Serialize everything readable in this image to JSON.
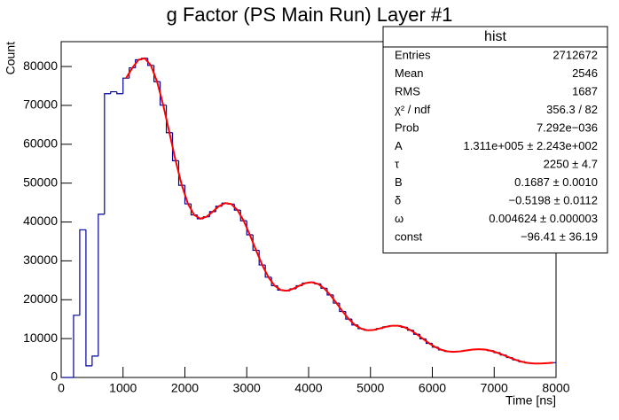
{
  "chart_data": {
    "type": "histogram",
    "title": "g Factor (PS Main Run) Layer #1",
    "x_label": "Time [ns]",
    "y_label": "Count",
    "bins": [
      0,
      100,
      200,
      300,
      400,
      500,
      600,
      700,
      800,
      900,
      1000,
      1100,
      1200,
      1300,
      1400,
      1500,
      1600,
      1700,
      1800,
      1900,
      2000,
      2100,
      2200,
      2300,
      2400,
      2500,
      2600,
      2700,
      2800,
      2900,
      3000,
      3100,
      3200,
      3300,
      3400,
      3500,
      3600,
      3700,
      3800,
      3900,
      4000,
      4100,
      4200,
      4300,
      4400,
      4500,
      4600,
      4700,
      4800,
      4900,
      5000,
      5100,
      5200,
      5300,
      5400,
      5500,
      5600,
      5700,
      5800,
      5900,
      6000,
      6100,
      6200,
      6300,
      6400,
      6500,
      6600,
      6700,
      6800,
      6900,
      7000,
      7100,
      7200,
      7300,
      7400,
      7500,
      7600,
      7700,
      7800,
      7900,
      8000
    ],
    "values": [
      0,
      0,
      16000,
      38000,
      3000,
      5500,
      42000,
      73000,
      73500,
      73000,
      77010,
      79660,
      81730,
      82130,
      80290,
      76120,
      70060,
      62970,
      55770,
      49440,
      44670,
      41820,
      40840,
      41350,
      42660,
      44060,
      44870,
      44610,
      43060,
      40320,
      36700,
      32730,
      28940,
      25800,
      23610,
      22490,
      22310,
      22810,
      23610,
      24290,
      24500,
      24080,
      22950,
      21230,
      19140,
      16970,
      15020,
      13500,
      12550,
      12150,
      12230,
      12610,
      13040,
      13320,
      13310,
      12910,
      12150,
      11110,
      9930,
      8780,
      7790,
      7080,
      6690,
      6600,
      6710,
      6950,
      7170,
      7260,
      7180,
      6870,
      6380,
      5770,
      5120,
      4520,
      4040,
      3720,
      3580,
      3590,
      3680,
      3800
    ],
    "color": "#000099",
    "fit": {
      "color": "#ff0000",
      "x": [
        1050,
        1150,
        1250,
        1350,
        1450,
        1550,
        1650,
        1750,
        1850,
        1950,
        2050,
        2150,
        2250,
        2350,
        2450,
        2550,
        2650,
        2750,
        2850,
        2950,
        3050,
        3150,
        3250,
        3350,
        3450,
        3550,
        3650,
        3750,
        3850,
        3950,
        4050,
        4150,
        4250,
        4350,
        4450,
        4550,
        4650,
        4750,
        4850,
        4950,
        5050,
        5150,
        5250,
        5350,
        5450,
        5550,
        5650,
        5750,
        5850,
        5950,
        6050,
        6150,
        6250,
        6350,
        6450,
        6550,
        6650,
        6750,
        6850,
        6950,
        7050,
        7150,
        7250,
        7350,
        7450,
        7550,
        7650,
        7750,
        7850,
        7950
      ],
      "y": [
        77010,
        79660,
        81730,
        82130,
        80290,
        76120,
        70060,
        62970,
        55770,
        49440,
        44670,
        41820,
        40840,
        41350,
        42660,
        44060,
        44870,
        44610,
        43060,
        40320,
        36700,
        32730,
        28940,
        25800,
        23610,
        22490,
        22310,
        22810,
        23610,
        24290,
        24500,
        24080,
        22950,
        21230,
        19140,
        16970,
        15020,
        13500,
        12550,
        12150,
        12230,
        12610,
        13040,
        13320,
        13310,
        12910,
        12150,
        11110,
        9930,
        8780,
        7790,
        7080,
        6690,
        6600,
        6710,
        6950,
        7170,
        7260,
        7180,
        6870,
        6380,
        5770,
        5120,
        4520,
        4040,
        3720,
        3580,
        3590,
        3680,
        3800
      ]
    },
    "xlim": [
      0,
      8000
    ],
    "xticks": [
      0,
      1000,
      2000,
      3000,
      4000,
      5000,
      6000,
      7000,
      8000
    ],
    "ylim": [
      0,
      86400
    ],
    "yticks": [
      0,
      10000,
      20000,
      30000,
      40000,
      50000,
      60000,
      70000,
      80000
    ],
    "stats": {
      "title": "hist",
      "rows": [
        [
          "Entries",
          "2712672"
        ],
        [
          "Mean",
          "2546"
        ],
        [
          "RMS",
          "1687"
        ],
        [
          "χ² / ndf",
          "356.3 / 82"
        ],
        [
          "Prob",
          "7.292e−036"
        ],
        [
          "A",
          "1.311e+005 ± 2.243e+002"
        ],
        [
          "τ",
          "2250 ± 4.7"
        ],
        [
          "B",
          "0.1687 ± 0.0010"
        ],
        [
          "δ",
          "−0.5198 ± 0.0112"
        ],
        [
          "ω",
          "0.004624 ± 0.000003"
        ],
        [
          "const",
          "−96.41 ± 36.19"
        ]
      ]
    }
  }
}
